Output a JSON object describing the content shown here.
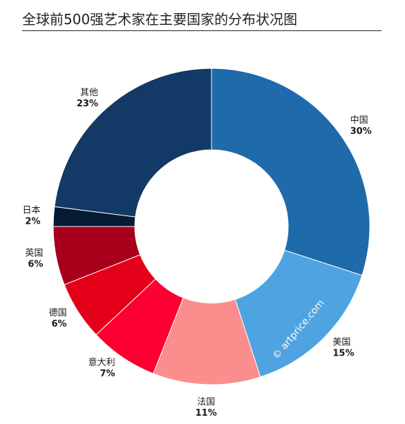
{
  "title": "全球前500强艺术家在主要国家的分布状况图",
  "watermark": "© artprice.com",
  "chart_data": {
    "type": "pie",
    "variant": "donut",
    "title": "全球前500强艺术家在主要国家的分布状况图",
    "slices": [
      {
        "label": "中国",
        "value": 30,
        "value_label": "30%",
        "color": "#1f6aab"
      },
      {
        "label": "美国",
        "value": 15,
        "value_label": "15%",
        "color": "#4fa3e0"
      },
      {
        "label": "法国",
        "value": 11,
        "value_label": "11%",
        "color": "#fc8d8d"
      },
      {
        "label": "意大利",
        "value": 7,
        "value_label": "7%",
        "color": "#fb0030"
      },
      {
        "label": "德国",
        "value": 6,
        "value_label": "6%",
        "color": "#e30018"
      },
      {
        "label": "英国",
        "value": 6,
        "value_label": "6%",
        "color": "#a8001c"
      },
      {
        "label": "日本",
        "value": 2,
        "value_label": "2%",
        "color": "#051a33"
      },
      {
        "label": "其他",
        "value": 23,
        "value_label": "23%",
        "color": "#133a66"
      }
    ]
  }
}
